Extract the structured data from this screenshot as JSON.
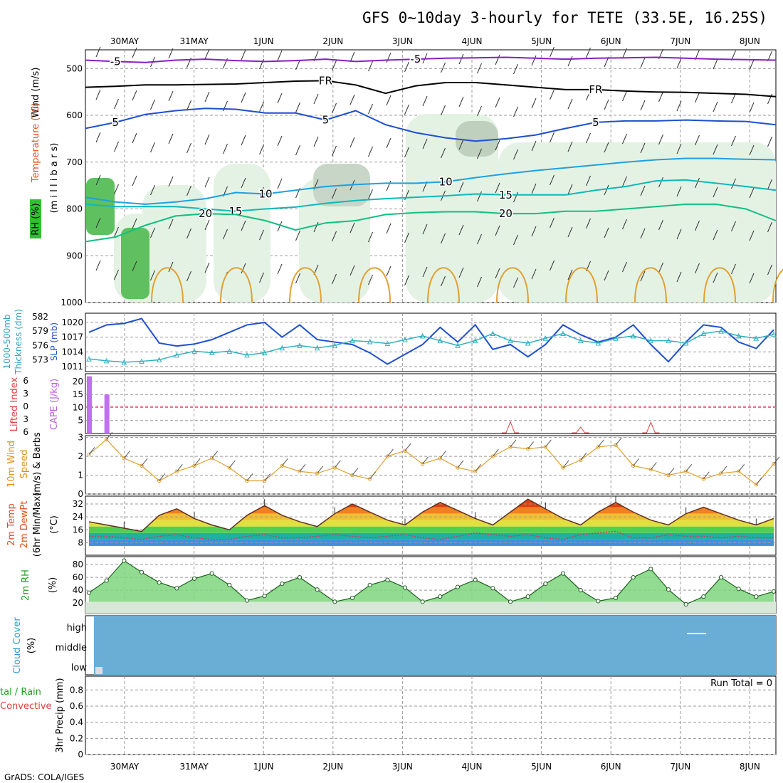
{
  "title": "GFS 0~10day 3-hourly for TETE (33.5E, 16.25S)",
  "footer": "GrADS: COLA/IGES",
  "run_total": "Run Total = 0",
  "x_axis": {
    "labels": [
      "30MAY",
      "31MAY",
      "1JUN",
      "2JUN",
      "3JUN",
      "4JUN",
      "5JUN",
      "6JUN",
      "7JUN",
      "8JUN"
    ]
  },
  "colors": {
    "purple": "#8a1fc0",
    "black": "#000000",
    "blue": "#1f4fd0",
    "cyan": "#1fa0e0",
    "teal": "#10b8b8",
    "green": "#10c080",
    "orange": "#e0a030",
    "temp_orange": "#e08020",
    "sky": "#6aaed6",
    "rh_green": "#20a020"
  },
  "labels": {
    "upper": {
      "wind": "Wind (m/s)",
      "temp": "Temperature (°C)",
      "rh": "RH (%)",
      "mb": "(m i l l i b a r s)"
    },
    "thick": {
      "a": "1000-500mb",
      "b": "Thickness (dm)",
      "slp": "SLP (mb)"
    },
    "cape": {
      "li": "Lifted Index",
      "cape": "CAPE (J/kg)"
    },
    "wind10": {
      "a": "10m Wind",
      "b": "Speed",
      "c": "(m/s) & Barbs"
    },
    "temp2m": {
      "a": "2m Temp",
      "b": "2m DewPt",
      "c": "(6hr Min/Max)",
      "unit": "(°C)"
    },
    "rh2m": {
      "a": "2m RH",
      "unit": "(%)"
    },
    "cloud": {
      "a": "Cloud Cover",
      "unit": "(%)",
      "high": "high",
      "middle": "middle",
      "low": "low"
    },
    "precip": {
      "a": "tal / Rain",
      "b": "Convective",
      "c": "3hr Precip (mm)"
    }
  },
  "chart_data": {
    "type": "meteogram",
    "days": [
      "30MAY",
      "31MAY",
      "1JUN",
      "2JUN",
      "3JUN",
      "4JUN",
      "5JUN",
      "6JUN",
      "7JUN",
      "8JUN"
    ],
    "upper_air": {
      "y_ticks": [
        500,
        600,
        700,
        800,
        900,
        1000
      ],
      "isotherms": [
        {
          "label": "-5",
          "color": "purple",
          "p": [
            482,
            485,
            487,
            482,
            480,
            483,
            485,
            483,
            480,
            485,
            482,
            480,
            478,
            477,
            476,
            478,
            480,
            478,
            477,
            476,
            478,
            480,
            481,
            482
          ],
          "tags": [
            {
              "i": 1,
              "text": "-5"
            },
            {
              "i": 11,
              "text": "-5"
            }
          ]
        },
        {
          "label": "FR",
          "color": "black",
          "p": [
            540,
            538,
            535,
            535,
            534,
            533,
            530,
            527,
            526,
            535,
            553,
            537,
            530,
            530,
            535,
            540,
            545,
            545,
            548,
            550,
            551,
            553,
            555,
            560
          ],
          "tags": [
            {
              "i": 8,
              "text": "FR"
            },
            {
              "i": 17,
              "text": "FR"
            }
          ]
        },
        {
          "label": "5",
          "color": "blue",
          "p": [
            628,
            615,
            598,
            590,
            585,
            587,
            595,
            595,
            610,
            590,
            620,
            637,
            648,
            655,
            650,
            642,
            628,
            615,
            612,
            612,
            610,
            612,
            613,
            620
          ],
          "tags": [
            {
              "i": 1,
              "text": "5"
            },
            {
              "i": 8,
              "text": "5"
            },
            {
              "i": 17,
              "text": "5"
            }
          ]
        },
        {
          "label": "10",
          "color": "cyan",
          "p": [
            775,
            785,
            790,
            785,
            778,
            765,
            768,
            760,
            752,
            748,
            745,
            745,
            742,
            733,
            725,
            718,
            712,
            706,
            700,
            695,
            692,
            692,
            694,
            695
          ],
          "tags": [
            {
              "i": 6,
              "text": "10"
            },
            {
              "i": 12,
              "text": "10"
            }
          ]
        },
        {
          "label": "15",
          "color": "teal",
          "p": [
            790,
            795,
            795,
            795,
            800,
            805,
            800,
            796,
            788,
            782,
            778,
            775,
            772,
            768,
            770,
            770,
            770,
            760,
            752,
            740,
            738,
            745,
            752,
            760
          ],
          "tags": [
            {
              "i": 5,
              "text": "15"
            },
            {
              "i": 14,
              "text": "15"
            }
          ]
        },
        {
          "label": "20",
          "color": "green",
          "p": [
            870,
            860,
            835,
            815,
            810,
            812,
            825,
            845,
            830,
            825,
            812,
            808,
            806,
            806,
            810,
            810,
            805,
            805,
            800,
            795,
            790,
            790,
            800,
            825
          ],
          "tags": [
            {
              "i": 4,
              "text": "20"
            },
            {
              "i": 14,
              "text": "20"
            }
          ]
        }
      ]
    },
    "thickness_slp": {
      "thickness_ticks": [
        582,
        579,
        576,
        573
      ],
      "slp_ticks": [
        1020,
        1017,
        1014,
        1011
      ],
      "slp": [
        1018,
        1019.5,
        1019.8,
        1020.8,
        1015.8,
        1015.2,
        1015.6,
        1016.5,
        1018,
        1019.5,
        1020,
        1017,
        1019.5,
        1016.5,
        1016,
        1015.5,
        1013.8,
        1011.5,
        1013.5,
        1015.5,
        1019,
        1016,
        1019.5,
        1014.5,
        1015.5,
        1013,
        1015.5,
        1019.5,
        1017.5,
        1016,
        1017,
        1019.5,
        1015.5,
        1012,
        1016,
        1019.5,
        1019,
        1016,
        1014.7,
        1018.5
      ],
      "thickness": [
        573.2,
        572.8,
        572.5,
        572.7,
        573.0,
        574.0,
        574.8,
        574.5,
        574.8,
        574.0,
        574.5,
        575.5,
        576.0,
        575.5,
        576.0,
        577.0,
        576.8,
        576.4,
        577.2,
        578.0,
        577.0,
        576.0,
        577.0,
        578.5,
        577.0,
        576.5,
        577.5,
        578.5,
        577.0,
        576.5,
        577.5,
        578.0,
        577.0,
        577.0,
        576.5,
        578.5,
        579.0,
        578.0,
        577.5,
        578.3
      ]
    },
    "cape_li": {
      "li_ticks": [
        6,
        3,
        0,
        -3,
        -6
      ],
      "cape_ticks": [
        20,
        15,
        10,
        5
      ],
      "cape_bars": [
        {
          "i": 0,
          "value": 22
        },
        {
          "i": 1,
          "value": 15
        }
      ],
      "li_spikes": [
        {
          "i": 24,
          "value": 5.5
        },
        {
          "i": 28,
          "value": 3
        },
        {
          "i": 32,
          "value": 5.3
        }
      ]
    },
    "wind10m": {
      "y_ticks": [
        3,
        2,
        1,
        0
      ],
      "speed": [
        2.1,
        2.9,
        1.9,
        1.5,
        0.7,
        1.2,
        1.5,
        1.9,
        1.4,
        0.7,
        0.7,
        1.5,
        1.2,
        1.1,
        1.4,
        1.0,
        0.8,
        2.0,
        2.3,
        1.6,
        1.9,
        1.4,
        1.2,
        2.0,
        2.5,
        2.4,
        2.5,
        1.4,
        1.8,
        2.5,
        2.6,
        1.5,
        1.3,
        1.0,
        1.2,
        0.8,
        1.1,
        1.2,
        0.5,
        1.6
      ]
    },
    "temp2m": {
      "y_ticks": [
        32,
        24,
        16,
        8
      ],
      "temp": [
        21,
        19,
        17,
        15,
        25,
        29,
        23,
        19,
        16,
        25,
        31,
        25,
        21,
        18,
        26,
        32,
        27,
        22,
        19,
        27,
        33,
        28,
        23,
        19,
        27,
        35,
        29,
        23,
        19,
        27,
        33,
        27,
        22,
        19,
        26,
        30,
        26,
        22,
        19,
        23
      ],
      "dewpt": [
        12,
        12,
        11,
        10,
        12,
        13,
        11,
        10,
        10,
        12,
        13,
        11,
        11,
        12,
        13,
        12,
        11,
        12,
        13,
        11,
        10,
        12,
        14,
        13,
        12,
        13,
        11,
        10,
        13,
        14,
        15,
        11,
        11,
        13,
        12,
        12,
        11,
        12,
        11,
        11
      ],
      "min": 16,
      "max": 35
    },
    "rh2m": {
      "y_ticks": [
        80,
        60,
        40,
        20
      ],
      "rh": [
        36,
        55,
        86,
        68,
        52,
        43,
        58,
        66,
        48,
        24,
        31,
        50,
        60,
        41,
        22,
        28,
        48,
        56,
        44,
        22,
        30,
        45,
        56,
        43,
        22,
        30,
        50,
        66,
        40,
        23,
        28,
        60,
        73,
        41,
        18,
        30,
        60,
        42,
        30,
        38
      ]
    },
    "cloud": {
      "rows": [
        "high",
        "middle",
        "low"
      ],
      "fill": "#6aaed6"
    },
    "precip": {
      "y_ticks": [
        0.8,
        0.6,
        0.4,
        0.2,
        0
      ],
      "values": []
    }
  }
}
